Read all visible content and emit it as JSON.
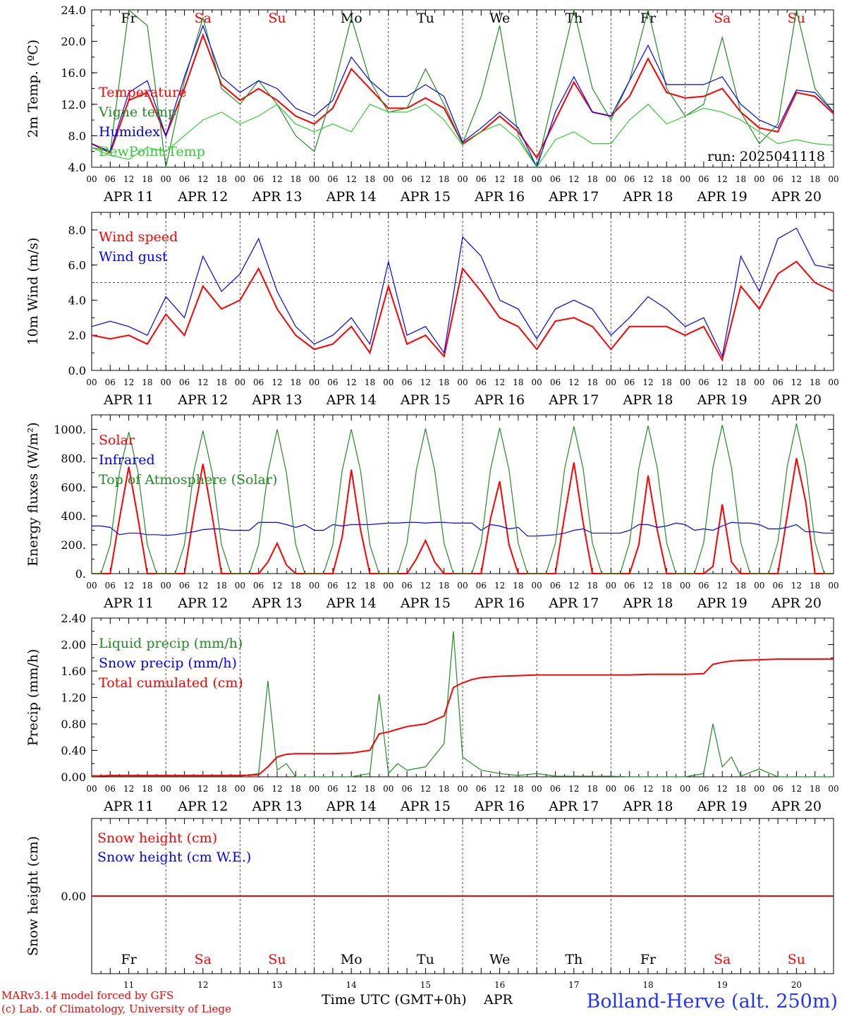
{
  "days": [
    "Fr",
    "Sa",
    "Su",
    "Mo",
    "Tu",
    "We",
    "Th",
    "Fr",
    "Sa",
    "Su"
  ],
  "weekend_days": [
    "Sa",
    "Su"
  ],
  "dates": [
    "APR 11",
    "APR 12",
    "APR 13",
    "APR 14",
    "APR 15",
    "APR 16",
    "APR 17",
    "APR 18",
    "APR 19",
    "APR 20"
  ],
  "day_numbers": [
    "11",
    "12",
    "13",
    "14",
    "15",
    "16",
    "17",
    "18",
    "19",
    "20"
  ],
  "hour_ticks": [
    "00",
    "06",
    "12",
    "18"
  ],
  "final_tick": "00",
  "footer": {
    "model": "MARv3.14 model forced by GFS",
    "lab": "(c) Lab. of Climatology, University of Liege",
    "xlabel": "Time UTC (GMT+0h)",
    "month": "APR",
    "station": "Bolland-Herve (alt. 250m)"
  },
  "colors": {
    "red": "#ff0000",
    "green": "#228b22",
    "blue": "#0000ff",
    "lightgreen": "#32cd32",
    "axis": "#000000",
    "grid": "#555555"
  },
  "chart_data": [
    {
      "type": "line",
      "id": "temp",
      "ylabel": "2m Temp. (ºC)",
      "yticks": [
        "4.0",
        "8.0",
        "12.0",
        "16.0",
        "20.0",
        "24.0"
      ],
      "ylim": [
        4,
        24
      ],
      "show_days": true,
      "annotation": "run: 2025041118",
      "x_hours": [
        0,
        6,
        12,
        18,
        24,
        30,
        36,
        42,
        48,
        54,
        60,
        66,
        72,
        78,
        84,
        90,
        96,
        102,
        108,
        114,
        120,
        126,
        132,
        138,
        144,
        150,
        156,
        162,
        168,
        174,
        180,
        186,
        192,
        198,
        204,
        210,
        216,
        222,
        228,
        234,
        240
      ],
      "series": [
        {
          "name": "Temperature",
          "color": "red",
          "values": [
            7.0,
            5.8,
            12.5,
            13.5,
            8.0,
            14.0,
            20.8,
            14.5,
            12.5,
            14.0,
            12.5,
            10.5,
            9.5,
            11.5,
            16.5,
            14.0,
            11.5,
            11.5,
            12.8,
            11.5,
            7.0,
            8.5,
            10.5,
            8.5,
            5.2,
            10.0,
            14.8,
            11.0,
            10.5,
            13.0,
            17.8,
            13.5,
            12.8,
            13.0,
            14.0,
            11.0,
            9.0,
            8.5,
            13.5,
            13.0,
            10.8
          ]
        },
        {
          "name": "Vigne temp",
          "color": "green",
          "values": [
            6.5,
            6.0,
            24.0,
            22.0,
            4.0,
            15.0,
            23.0,
            14.0,
            12.0,
            15.0,
            12.0,
            8.0,
            6.0,
            13.5,
            23.0,
            15.0,
            11.0,
            11.5,
            16.5,
            12.0,
            7.0,
            13.0,
            22.0,
            8.0,
            4.0,
            14.0,
            24.0,
            14.0,
            10.0,
            15.0,
            24.0,
            14.0,
            10.5,
            12.0,
            20.5,
            11.0,
            7.0,
            9.5,
            24.0,
            14.0,
            11.0
          ]
        },
        {
          "name": "Humidex",
          "color": "blue",
          "values": [
            7.0,
            6.0,
            13.5,
            15.0,
            8.0,
            15.5,
            22.0,
            15.5,
            13.5,
            15.0,
            14.0,
            11.5,
            10.5,
            12.5,
            18.0,
            15.0,
            13.0,
            13.0,
            14.5,
            13.0,
            7.2,
            9.0,
            11.0,
            9.0,
            4.0,
            11.0,
            15.5,
            11.0,
            10.5,
            15.0,
            19.5,
            14.5,
            14.5,
            14.5,
            15.5,
            12.0,
            10.0,
            9.0,
            13.8,
            13.5,
            11.0
          ]
        },
        {
          "name": "DewPoint Temp",
          "color": "lightgreen",
          "values": [
            6.5,
            5.5,
            5.0,
            6.5,
            6.0,
            8.0,
            10.0,
            11.0,
            9.5,
            10.5,
            12.0,
            9.5,
            8.5,
            9.5,
            8.5,
            12.0,
            11.0,
            11.0,
            12.0,
            10.0,
            6.8,
            8.5,
            9.5,
            7.5,
            4.0,
            7.5,
            8.5,
            7.0,
            7.0,
            10.0,
            12.0,
            9.5,
            10.5,
            11.5,
            11.0,
            10.0,
            8.5,
            7.0,
            7.5,
            7.0,
            6.8
          ]
        }
      ]
    },
    {
      "type": "line",
      "id": "wind",
      "ylabel": "10m Wind (m/s)",
      "yticks": [
        "0.0",
        "2.0",
        "4.0",
        "6.0",
        "8.0"
      ],
      "ylim": [
        0,
        9
      ],
      "show_days": false,
      "reference_line": 5,
      "x_hours": [
        0,
        6,
        12,
        18,
        24,
        30,
        36,
        42,
        48,
        54,
        60,
        66,
        72,
        78,
        84,
        90,
        96,
        102,
        108,
        114,
        120,
        126,
        132,
        138,
        144,
        150,
        156,
        162,
        168,
        174,
        180,
        186,
        192,
        198,
        204,
        210,
        216,
        222,
        228,
        234,
        240
      ],
      "series": [
        {
          "name": "Wind speed",
          "color": "red",
          "values": [
            2.0,
            1.8,
            2.0,
            1.5,
            3.2,
            2.0,
            4.8,
            3.5,
            4.0,
            5.8,
            3.5,
            2.0,
            1.2,
            1.5,
            2.5,
            1.0,
            4.8,
            1.5,
            2.0,
            0.8,
            5.8,
            4.5,
            3.0,
            2.5,
            1.2,
            2.8,
            3.0,
            2.5,
            1.2,
            2.5,
            2.5,
            2.5,
            2.0,
            2.5,
            0.6,
            4.8,
            3.5,
            5.5,
            6.2,
            5.0,
            4.5
          ]
        },
        {
          "name": "Wind gust",
          "color": "blue",
          "values": [
            2.5,
            2.8,
            2.5,
            2.0,
            4.2,
            3.0,
            6.5,
            4.5,
            5.5,
            7.5,
            4.5,
            2.5,
            1.5,
            2.0,
            3.0,
            1.5,
            6.2,
            2.0,
            2.5,
            1.0,
            7.6,
            6.5,
            4.0,
            3.5,
            1.8,
            3.5,
            4.0,
            3.5,
            2.0,
            3.0,
            4.2,
            3.5,
            2.5,
            3.0,
            0.8,
            6.5,
            4.5,
            7.5,
            8.1,
            6.0,
            5.8
          ]
        }
      ]
    },
    {
      "type": "line",
      "id": "energy",
      "ylabel": "Energy fluxes (W/m²)",
      "yticks": [
        "0.",
        "200.",
        "400.",
        "600.",
        "800.",
        "1000."
      ],
      "ylim": [
        0,
        1100
      ],
      "show_days": false,
      "x_hours": [
        0,
        3,
        6,
        9,
        12,
        15,
        18,
        21,
        24,
        27,
        30,
        33,
        36,
        39,
        42,
        45,
        48,
        51,
        54,
        57,
        60,
        63,
        66,
        69,
        72,
        75,
        78,
        81,
        84,
        87,
        90,
        93,
        96,
        99,
        102,
        105,
        108,
        111,
        114,
        117,
        120,
        123,
        126,
        129,
        132,
        135,
        138,
        141,
        144,
        147,
        150,
        153,
        156,
        159,
        162,
        165,
        168,
        171,
        174,
        177,
        180,
        183,
        186,
        189,
        192,
        195,
        198,
        201,
        204,
        207,
        210,
        213,
        216,
        219,
        222,
        225,
        228,
        231,
        234,
        237,
        240
      ],
      "series": [
        {
          "name": "Solar",
          "color": "red",
          "values": [
            0,
            0,
            0,
            380,
            740,
            380,
            0,
            0,
            0,
            0,
            0,
            400,
            760,
            400,
            0,
            0,
            0,
            0,
            0,
            80,
            210,
            60,
            0,
            0,
            0,
            0,
            0,
            250,
            720,
            300,
            0,
            0,
            0,
            0,
            0,
            100,
            230,
            80,
            0,
            0,
            0,
            0,
            0,
            380,
            640,
            200,
            0,
            0,
            0,
            0,
            0,
            400,
            770,
            350,
            0,
            0,
            0,
            0,
            0,
            200,
            680,
            300,
            0,
            0,
            0,
            0,
            0,
            50,
            480,
            80,
            0,
            0,
            0,
            0,
            0,
            400,
            800,
            500,
            0,
            0,
            0
          ]
        },
        {
          "name": "Infrared",
          "color": "blue",
          "values": [
            330,
            330,
            320,
            270,
            280,
            280,
            270,
            270,
            265,
            270,
            280,
            290,
            305,
            310,
            310,
            300,
            300,
            300,
            355,
            355,
            355,
            340,
            320,
            340,
            300,
            300,
            340,
            330,
            340,
            340,
            340,
            345,
            350,
            350,
            355,
            355,
            350,
            355,
            355,
            350,
            350,
            350,
            300,
            340,
            330,
            310,
            320,
            260,
            260,
            265,
            270,
            280,
            300,
            310,
            280,
            280,
            280,
            280,
            300,
            340,
            340,
            320,
            330,
            350,
            340,
            300,
            310,
            300,
            330,
            355,
            350,
            350,
            340,
            310,
            310,
            320,
            340,
            290,
            290,
            280,
            280
          ]
        },
        {
          "name": "Top of Atmosphere (Solar)",
          "color": "green",
          "values": [
            0,
            0,
            200,
            700,
            980,
            700,
            200,
            0,
            0,
            0,
            200,
            700,
            990,
            700,
            200,
            0,
            0,
            0,
            200,
            700,
            1000,
            700,
            200,
            0,
            0,
            0,
            200,
            710,
            1000,
            710,
            200,
            0,
            0,
            0,
            210,
            715,
            1005,
            715,
            210,
            0,
            0,
            0,
            210,
            720,
            1010,
            720,
            210,
            0,
            0,
            0,
            210,
            725,
            1020,
            725,
            210,
            0,
            0,
            0,
            215,
            730,
            1025,
            730,
            215,
            0,
            0,
            0,
            215,
            735,
            1030,
            735,
            215,
            0,
            0,
            0,
            220,
            740,
            1040,
            740,
            220,
            0,
            0
          ]
        }
      ]
    },
    {
      "type": "line",
      "id": "precip",
      "ylabel": "Precip (mm/h)",
      "yticks": [
        "0.00",
        "0.40",
        "0.80",
        "1.20",
        "1.60",
        "2.00",
        "2.40"
      ],
      "ylim": [
        0,
        2.4
      ],
      "show_days": false,
      "x_hours": [
        0,
        6,
        12,
        18,
        24,
        30,
        36,
        42,
        48,
        54,
        57,
        60,
        63,
        66,
        72,
        78,
        84,
        90,
        93,
        96,
        99,
        102,
        108,
        114,
        117,
        120,
        123,
        126,
        132,
        138,
        144,
        150,
        156,
        162,
        168,
        174,
        180,
        186,
        192,
        198,
        201,
        204,
        207,
        210,
        216,
        222,
        228,
        234,
        240
      ],
      "series": [
        {
          "name": "Liquid precip (mm/h)",
          "color": "green",
          "values": [
            0.02,
            0.01,
            0.01,
            0.01,
            0.01,
            0.01,
            0.01,
            0.01,
            0.01,
            0.05,
            1.45,
            0.1,
            0.2,
            0.0,
            0.0,
            0.0,
            0.0,
            0.05,
            1.25,
            0.05,
            0.2,
            0.1,
            0.15,
            0.5,
            2.2,
            0.3,
            0.2,
            0.1,
            0.05,
            0.02,
            0.05,
            0.01,
            0.01,
            0.01,
            0.01,
            0.0,
            0.0,
            0.0,
            0.0,
            0.05,
            0.8,
            0.15,
            0.3,
            0.01,
            0.12,
            0.0,
            0.0,
            0.0,
            0.0
          ]
        },
        {
          "name": "Snow precip (mm/h)",
          "color": "blue",
          "values": []
        },
        {
          "name": "Total cumulated (cm)",
          "color": "red",
          "values": [
            0.01,
            0.02,
            0.02,
            0.02,
            0.02,
            0.02,
            0.02,
            0.02,
            0.02,
            0.03,
            0.15,
            0.3,
            0.34,
            0.35,
            0.35,
            0.35,
            0.36,
            0.4,
            0.65,
            0.68,
            0.72,
            0.76,
            0.8,
            0.92,
            1.35,
            1.42,
            1.47,
            1.5,
            1.52,
            1.53,
            1.54,
            1.54,
            1.54,
            1.54,
            1.54,
            1.54,
            1.55,
            1.55,
            1.55,
            1.56,
            1.7,
            1.73,
            1.75,
            1.76,
            1.77,
            1.78,
            1.78,
            1.78,
            1.78
          ]
        }
      ]
    },
    {
      "type": "line",
      "id": "snow",
      "ylabel": "Snow height (cm)",
      "yticks": [
        "0.00"
      ],
      "ylim": [
        -1,
        1
      ],
      "show_days": true,
      "x_hours": [
        0,
        240
      ],
      "series": [
        {
          "name": "Snow height (cm)",
          "color": "red",
          "values": [
            0,
            0
          ]
        },
        {
          "name": "Snow height (cm W.E.)",
          "color": "blue",
          "values": []
        }
      ]
    }
  ]
}
